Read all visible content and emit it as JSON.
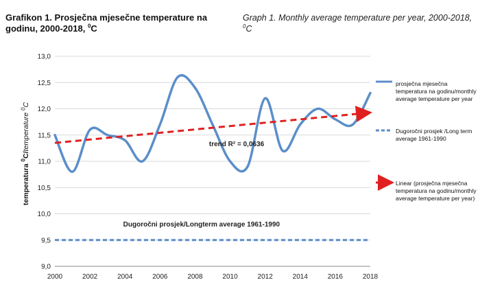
{
  "titles": {
    "left_main": "Grafikon 1. Prosječna mjesečne temperature na godinu, 2000-2018, ",
    "left_unit_sup": "0",
    "left_unit": "C",
    "right_main": "Graph 1. Monthly average temperature per year, 2000-2018,",
    "right_unit_sup": "0",
    "right_unit": "C"
  },
  "y_axis_label": {
    "bold_part": "temperatura ",
    "sup": "0",
    "unit": "C/",
    "italic_part": "temperature ",
    "sup2": "0",
    "unit2": "C"
  },
  "legend": {
    "series1": "prosječna mjesečna temperatura na godinu/monthly average temperature per year",
    "series2": "Dugoročni prosjek /Long term average 1961-1990",
    "series3": "Linear (prosječna mjesečna temperatura na godinu/monthly average temperature per year)"
  },
  "annotations": {
    "trend": "trend R² = 0,0636",
    "long_term": "Dugoročni prosjek/Longterm average 1961-1990"
  },
  "colors": {
    "series": "#5b8ec9",
    "average": "#5b8ec9",
    "trend": "#e02020",
    "grid": "#d9d9d9"
  },
  "chart_data": {
    "type": "line",
    "title": "Grafikon 1. Prosječna mjesečne temperature na godinu, 2000-2018, 0C",
    "xlabel": "",
    "ylabel": "temperatura 0C/temperature 0C",
    "x": [
      2000,
      2001,
      2002,
      2003,
      2004,
      2005,
      2006,
      2007,
      2008,
      2009,
      2010,
      2011,
      2012,
      2013,
      2014,
      2015,
      2016,
      2017,
      2018
    ],
    "xlim": [
      2000,
      2018
    ],
    "x_ticks": [
      "2000",
      "2002",
      "2004",
      "2006",
      "2008",
      "2010",
      "2012",
      "2014",
      "2016",
      "2018"
    ],
    "ylim": [
      9.0,
      13.0
    ],
    "y_ticks": [
      "9,0",
      "9,5",
      "10,0",
      "10,5",
      "11,0",
      "11,5",
      "12,0",
      "12,5",
      "13,0"
    ],
    "grid": true,
    "legend_position": "right",
    "series": [
      {
        "name": "prosječna mjesečna temperatura na godinu/monthly average temperature per year",
        "values": [
          11.5,
          10.8,
          11.6,
          11.5,
          11.4,
          11.0,
          11.7,
          12.6,
          12.4,
          11.7,
          11.0,
          10.9,
          12.2,
          11.2,
          11.7,
          12.0,
          11.8,
          11.7,
          12.3
        ]
      },
      {
        "name": "Dugoročni prosjek /Long term average 1961-1990",
        "values": [
          9.5,
          9.5,
          9.5,
          9.5,
          9.5,
          9.5,
          9.5,
          9.5,
          9.5,
          9.5,
          9.5,
          9.5,
          9.5,
          9.5,
          9.5,
          9.5,
          9.5,
          9.5,
          9.5
        ]
      },
      {
        "name": "Linear (prosječna mjesečna temperatura na godinu/monthly average temperature per year)",
        "values": [
          11.35,
          11.92
        ],
        "x": [
          2000,
          2018
        ]
      }
    ]
  }
}
